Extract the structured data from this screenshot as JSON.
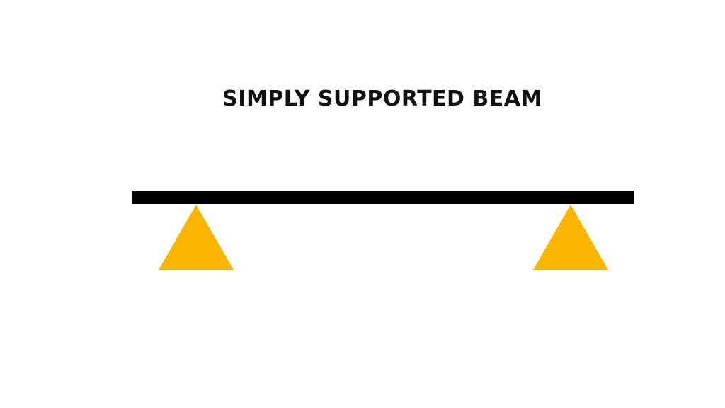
{
  "diagram": {
    "title": "SIMPLY SUPPORTED BEAM",
    "colors": {
      "background": "#ffffff",
      "beam": "#000000",
      "support": "#fbb400",
      "title": "#111111"
    },
    "supports": [
      {
        "type": "pinned"
      },
      {
        "type": "pinned"
      }
    ]
  }
}
